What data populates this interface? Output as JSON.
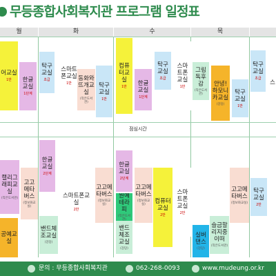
{
  "title": "무등종합사회복지관 프로그램 일정표",
  "days": [
    "월",
    "화",
    "수",
    "목"
  ],
  "lunch": "점심시간",
  "colors": {
    "green": "#2e8b4d",
    "yellow": "#f5f23a",
    "blue": "#c9e6f7",
    "pink": "#e5b8e6",
    "peach": "#f9ddd2",
    "orange": "#f5b42a",
    "mint": "#c9eed8"
  },
  "cells": {
    "m1": {
      "label": "어교실",
      "sub": "1반"
    },
    "m2": {
      "label": "한글교실",
      "sub": "1단계"
    },
    "m3": {
      "label": "탁구교실",
      "sub": "초급"
    },
    "t1": {
      "label": "스마트폰교실",
      "sub": "1반"
    },
    "t2": {
      "label": "동화와뜨개교실",
      "sub": "(작은도서관)"
    },
    "t3": {
      "label": "탁구교실",
      "sub": "1반"
    },
    "w1": {
      "label": "컴퓨터교실",
      "sub": "1반"
    },
    "w2": {
      "label": "한글교실",
      "sub": "1단계"
    },
    "w3": {
      "label": "탁구교실",
      "sub": "초급"
    },
    "th1": {
      "label": "스마트폰교실",
      "sub": "1반"
    },
    "th2": {
      "label": "그림독후감",
      "sub": "(작은도서관)"
    },
    "th3": {
      "label": "안녕!하모니카교실",
      "sub": "(강당)"
    },
    "th4": {
      "label": "탁구교실",
      "sub": "1반"
    },
    "f1": {
      "label": "탁구교실",
      "sub": "초급"
    },
    "f2": {
      "label": "스"
    },
    "pm_m1": {
      "label": "캘리그래피교실",
      "sub": "(작은도서관)"
    },
    "pm_m2": {
      "label": "공예교실"
    },
    "pm_m3": {
      "label": "고고메타버스",
      "sub": "(정보화교실)"
    },
    "pm_m4": {
      "label": "한글교실",
      "sub": "2단계"
    },
    "pm_m5": {
      "label": "밴드체조교실",
      "sub": "(강당)"
    },
    "pm_t1": {
      "label": "스마트폰교실",
      "sub": "2반"
    },
    "pm_t2": {
      "label": "고고메타버스",
      "sub": "(정보화교실)"
    },
    "pm_w1": {
      "label": "한글교실",
      "sub": "2단계"
    },
    "pm_w2": {
      "label": "원예테라피",
      "sub": "(작은도서관)"
    },
    "pm_w3": {
      "label": "밴드체조교실",
      "sub": "(강당)"
    },
    "pm_w4": {
      "label": "고고메타버스",
      "sub": "(정보화교실)"
    },
    "pm_w5": {
      "label": "컴퓨터교실",
      "sub": "2반"
    },
    "pm_th1": {
      "label": "스마트폰교실",
      "sub": "2반"
    },
    "pm_th2": {
      "label": "실버댄스",
      "sub": "(강당)"
    },
    "pm_th3": {
      "label": "슬금할리지중이떠",
      "sub": "(작은도서관)"
    },
    "pm_th4": {
      "label": "고고메타버스",
      "sub": "(정보화교실)"
    },
    "pm_f1": {
      "label": "탁구교실",
      "sub": "2반"
    }
  },
  "footer": {
    "contact": "문의 : 무등종합사회복지관",
    "phone": "062-268-0093",
    "website": "www.mudeung.or.kr"
  }
}
